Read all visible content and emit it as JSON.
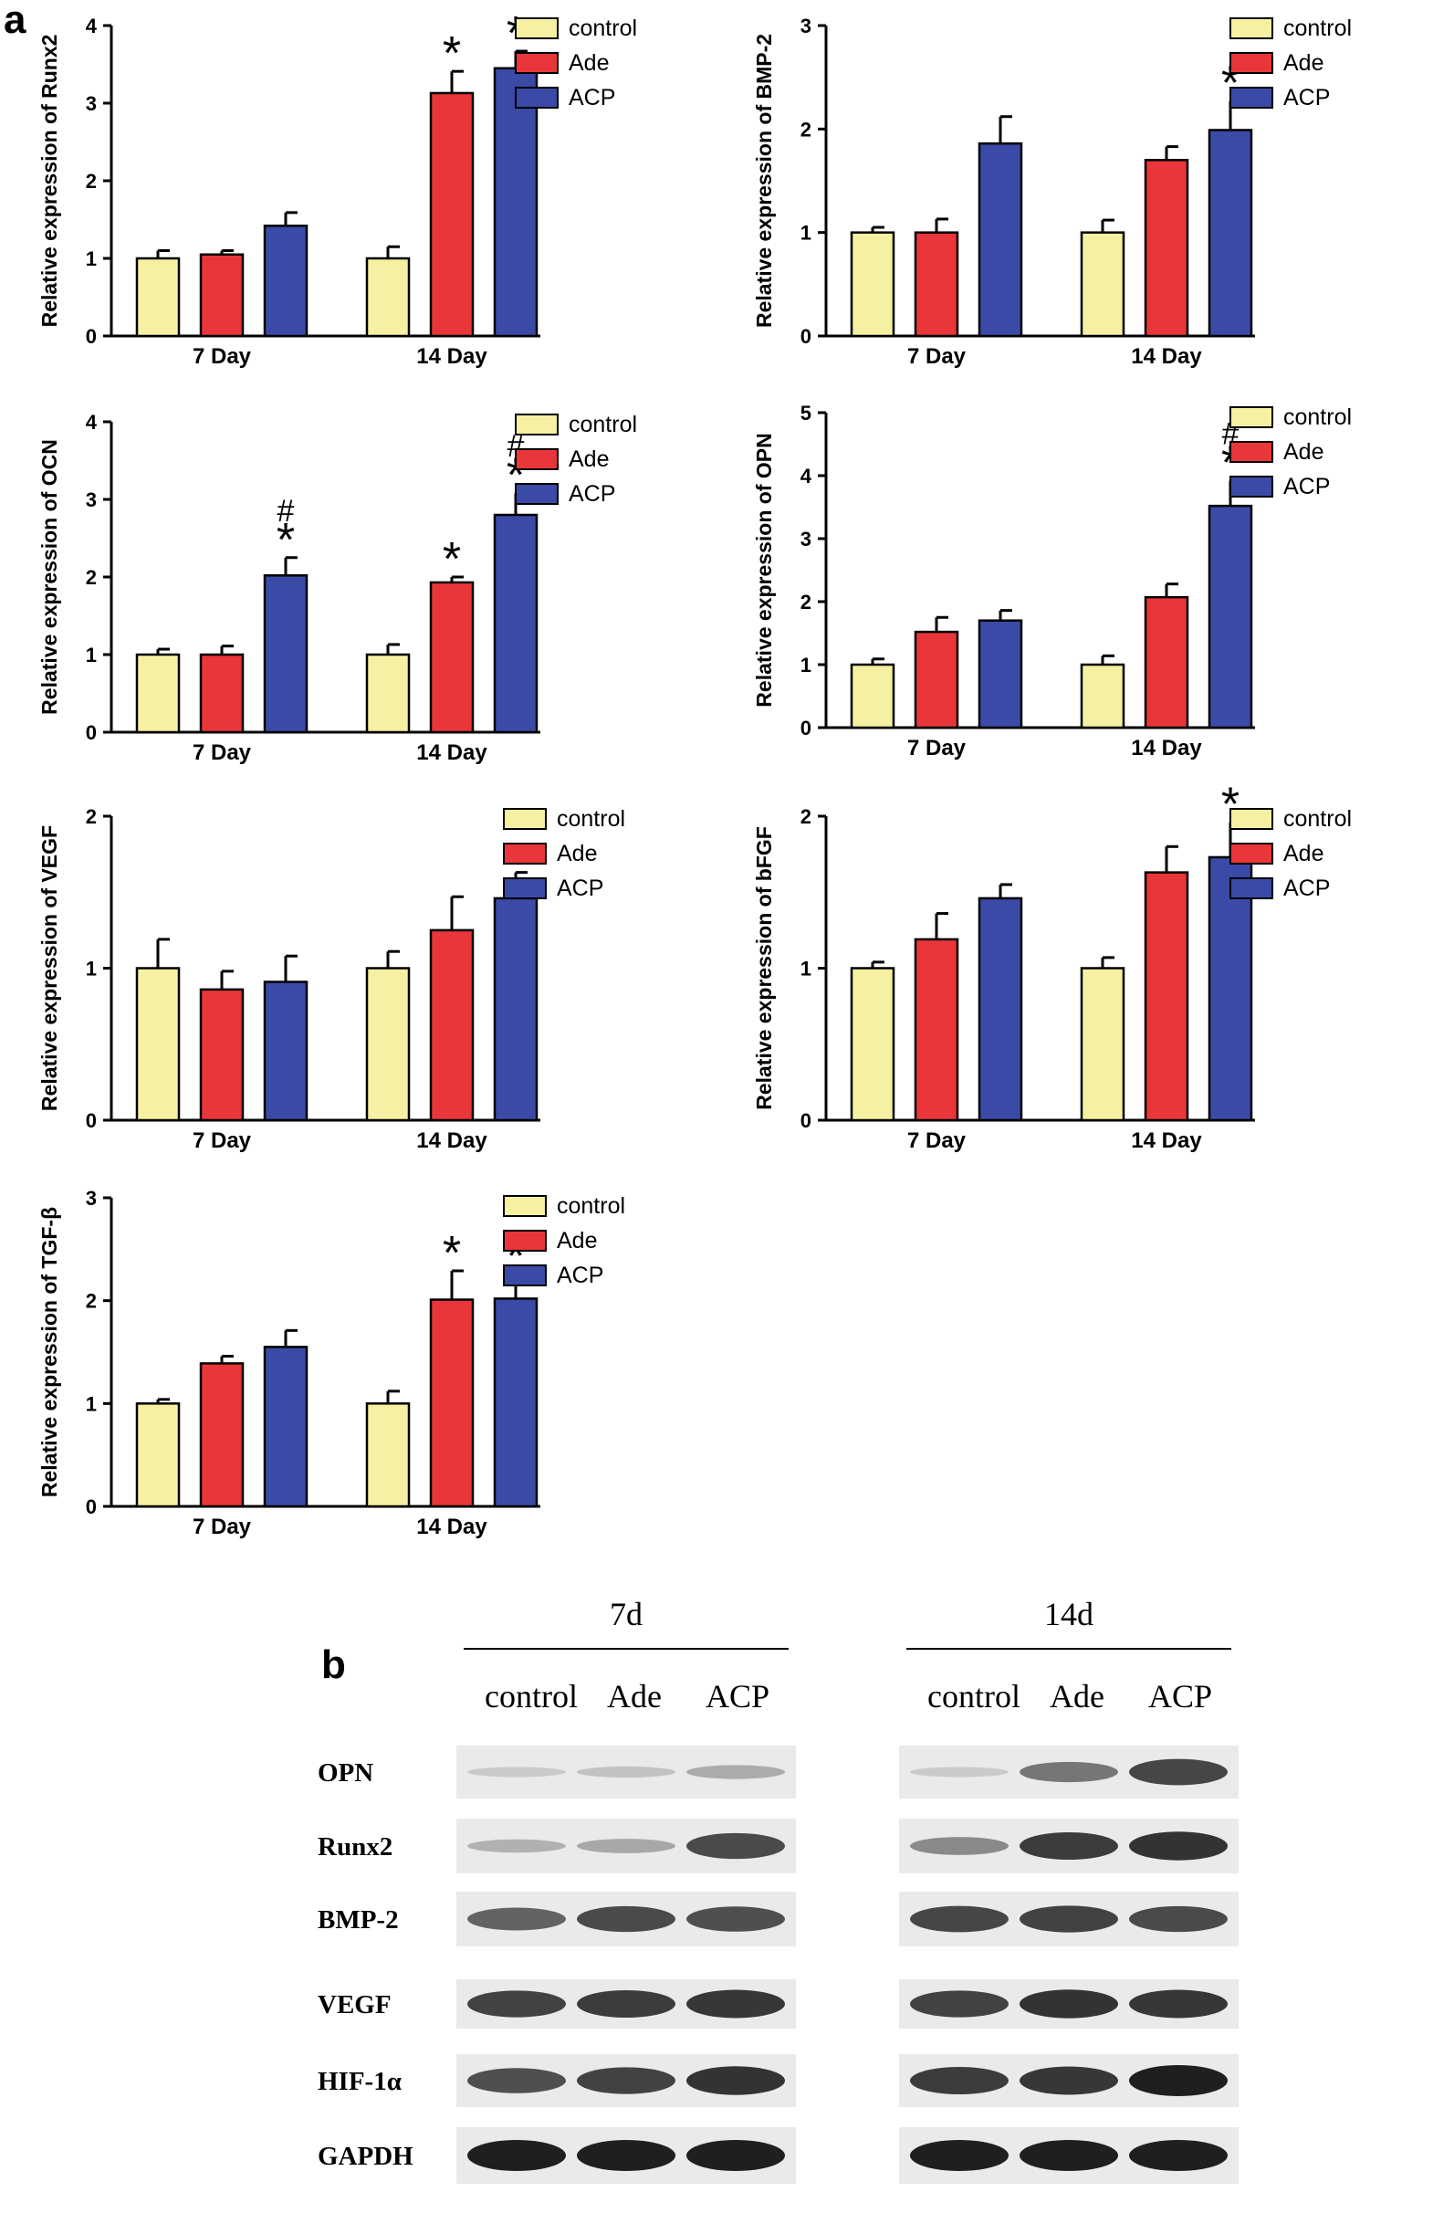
{
  "panels": {
    "a": "a",
    "b": "b"
  },
  "colors": {
    "control": "#f6f0a2",
    "Ade": "#e8363a",
    "ACP": "#3b4aa6",
    "axis": "#000000"
  },
  "chart_data": [
    {
      "type": "bar",
      "title": "",
      "ylabel": "Relative expression of Runx2",
      "categories": [
        "7 Day",
        "14 Day"
      ],
      "ylim": [
        0,
        4
      ],
      "yticks": [
        0,
        1,
        2,
        3,
        4
      ],
      "series": [
        {
          "name": "control",
          "values": [
            1.0,
            1.0
          ],
          "errors": [
            0.1,
            0.15
          ],
          "marks": [
            "",
            ""
          ]
        },
        {
          "name": "Ade",
          "values": [
            1.05,
            3.13
          ],
          "errors": [
            0.05,
            0.28
          ],
          "marks": [
            "",
            "*"
          ]
        },
        {
          "name": "ACP",
          "values": [
            1.42,
            3.45
          ],
          "errors": [
            0.17,
            0.22
          ],
          "marks": [
            "",
            "*"
          ]
        }
      ]
    },
    {
      "type": "bar",
      "title": "",
      "ylabel": "Relative expression of BMP-2",
      "categories": [
        "7 Day",
        "14 Day"
      ],
      "ylim": [
        0,
        3
      ],
      "yticks": [
        0,
        1,
        2,
        3
      ],
      "series": [
        {
          "name": "control",
          "values": [
            1.0,
            1.0
          ],
          "errors": [
            0.05,
            0.12
          ],
          "marks": [
            "",
            ""
          ]
        },
        {
          "name": "Ade",
          "values": [
            1.0,
            1.7
          ],
          "errors": [
            0.13,
            0.13
          ],
          "marks": [
            "",
            ""
          ]
        },
        {
          "name": "ACP",
          "values": [
            1.86,
            1.99
          ],
          "errors": [
            0.26,
            0.28
          ],
          "marks": [
            "",
            "*"
          ]
        }
      ]
    },
    {
      "type": "bar",
      "title": "",
      "ylabel": "Relative expression of OCN",
      "categories": [
        "7 Day",
        "14 Day"
      ],
      "ylim": [
        0,
        4
      ],
      "yticks": [
        0,
        1,
        2,
        3,
        4
      ],
      "series": [
        {
          "name": "control",
          "values": [
            1.0,
            1.0
          ],
          "errors": [
            0.07,
            0.13
          ],
          "marks": [
            "",
            ""
          ]
        },
        {
          "name": "Ade",
          "values": [
            1.0,
            1.93
          ],
          "errors": [
            0.11,
            0.07
          ],
          "marks": [
            "",
            "*"
          ]
        },
        {
          "name": "ACP",
          "values": [
            2.02,
            2.8
          ],
          "errors": [
            0.23,
            0.28
          ],
          "marks": [
            "#*",
            "#*"
          ]
        }
      ]
    },
    {
      "type": "bar",
      "title": "",
      "ylabel": "Relative expression of OPN",
      "categories": [
        "7 Day",
        "14 Day"
      ],
      "ylim": [
        0,
        5
      ],
      "yticks": [
        0,
        1,
        2,
        3,
        4,
        5
      ],
      "series": [
        {
          "name": "control",
          "values": [
            1.0,
            1.0
          ],
          "errors": [
            0.09,
            0.14
          ],
          "marks": [
            "",
            ""
          ]
        },
        {
          "name": "Ade",
          "values": [
            1.52,
            2.07
          ],
          "errors": [
            0.23,
            0.21
          ],
          "marks": [
            "",
            ""
          ]
        },
        {
          "name": "ACP",
          "values": [
            1.7,
            3.52
          ],
          "errors": [
            0.16,
            0.4
          ],
          "marks": [
            "",
            "#*"
          ]
        }
      ]
    },
    {
      "type": "bar",
      "title": "",
      "ylabel": "Relative expression of VEGF",
      "categories": [
        "7 Day",
        "14 Day"
      ],
      "ylim": [
        0,
        2
      ],
      "yticks": [
        0,
        1,
        2
      ],
      "series": [
        {
          "name": "control",
          "values": [
            1.0,
            1.0
          ],
          "errors": [
            0.19,
            0.11
          ],
          "marks": [
            "",
            ""
          ]
        },
        {
          "name": "Ade",
          "values": [
            0.86,
            1.25
          ],
          "errors": [
            0.12,
            0.22
          ],
          "marks": [
            "",
            ""
          ]
        },
        {
          "name": "ACP",
          "values": [
            0.91,
            1.46
          ],
          "errors": [
            0.17,
            0.17
          ],
          "marks": [
            "",
            ""
          ]
        }
      ]
    },
    {
      "type": "bar",
      "title": "",
      "ylabel": "Relative expression of bFGF",
      "categories": [
        "7 Day",
        "14 Day"
      ],
      "ylim": [
        0,
        2
      ],
      "yticks": [
        0,
        1,
        2
      ],
      "series": [
        {
          "name": "control",
          "values": [
            1.0,
            1.0
          ],
          "errors": [
            0.04,
            0.07
          ],
          "marks": [
            "",
            ""
          ]
        },
        {
          "name": "Ade",
          "values": [
            1.19,
            1.63
          ],
          "errors": [
            0.17,
            0.17
          ],
          "marks": [
            "",
            ""
          ]
        },
        {
          "name": "ACP",
          "values": [
            1.46,
            1.73
          ],
          "errors": [
            0.09,
            0.23
          ],
          "marks": [
            "",
            "*"
          ]
        }
      ]
    },
    {
      "type": "bar",
      "title": "",
      "ylabel": "Relative expression of TGF-β",
      "categories": [
        "7 Day",
        "14 Day"
      ],
      "ylim": [
        0,
        3
      ],
      "yticks": [
        0,
        1,
        2,
        3
      ],
      "series": [
        {
          "name": "control",
          "values": [
            1.0,
            1.0
          ],
          "errors": [
            0.04,
            0.12
          ],
          "marks": [
            "",
            ""
          ]
        },
        {
          "name": "Ade",
          "values": [
            1.39,
            2.01
          ],
          "errors": [
            0.07,
            0.28
          ],
          "marks": [
            "",
            "*"
          ]
        },
        {
          "name": "ACP",
          "values": [
            1.55,
            2.02
          ],
          "errors": [
            0.16,
            0.24
          ],
          "marks": [
            "",
            "*"
          ]
        }
      ]
    }
  ],
  "western_blot": {
    "groups": [
      "7d",
      "14d"
    ],
    "lanes": [
      "control",
      "Ade",
      "ACP"
    ],
    "rows": [
      {
        "label": "OPN",
        "intensity_7d": [
          0.12,
          0.16,
          0.28
        ],
        "intensity_14d": [
          0.12,
          0.55,
          0.8
        ]
      },
      {
        "label": "Runx2",
        "intensity_7d": [
          0.25,
          0.3,
          0.78
        ],
        "intensity_14d": [
          0.45,
          0.85,
          0.9
        ]
      },
      {
        "label": "BMP-2",
        "intensity_7d": [
          0.65,
          0.78,
          0.75
        ],
        "intensity_14d": [
          0.8,
          0.82,
          0.78
        ]
      },
      {
        "label": "VEGF",
        "intensity_7d": [
          0.82,
          0.85,
          0.88
        ],
        "intensity_14d": [
          0.82,
          0.9,
          0.88
        ]
      },
      {
        "label": "HIF-1α",
        "intensity_7d": [
          0.75,
          0.82,
          0.9
        ],
        "intensity_14d": [
          0.85,
          0.88,
          1.0
        ]
      },
      {
        "label": "GAPDH",
        "intensity_7d": [
          1.0,
          1.0,
          1.0
        ],
        "intensity_14d": [
          1.0,
          1.0,
          1.0
        ]
      }
    ]
  }
}
